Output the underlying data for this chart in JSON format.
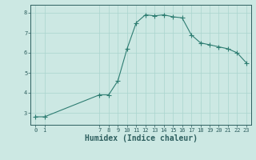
{
  "xlabel": "Humidex (Indice chaleur)",
  "x": [
    0,
    1,
    7,
    8,
    9,
    10,
    11,
    12,
    13,
    14,
    15,
    16,
    17,
    18,
    19,
    20,
    21,
    22,
    23
  ],
  "y": [
    2.8,
    2.8,
    3.9,
    3.9,
    4.6,
    6.2,
    7.5,
    7.9,
    7.85,
    7.9,
    7.8,
    7.75,
    6.9,
    6.5,
    6.4,
    6.3,
    6.2,
    6.0,
    5.5
  ],
  "line_color": "#2e7d72",
  "marker": "+",
  "marker_size": 4,
  "bg_color": "#cce8e3",
  "grid_color": "#aad4ce",
  "axis_color": "#2e5f5f",
  "xlim": [
    -0.5,
    23.5
  ],
  "ylim": [
    2.4,
    8.4
  ],
  "yticks": [
    3,
    4,
    5,
    6,
    7,
    8
  ],
  "xticks": [
    0,
    1,
    7,
    8,
    9,
    10,
    11,
    12,
    13,
    14,
    15,
    16,
    17,
    18,
    19,
    20,
    21,
    22,
    23
  ],
  "tick_fontsize": 5,
  "xlabel_fontsize": 7
}
